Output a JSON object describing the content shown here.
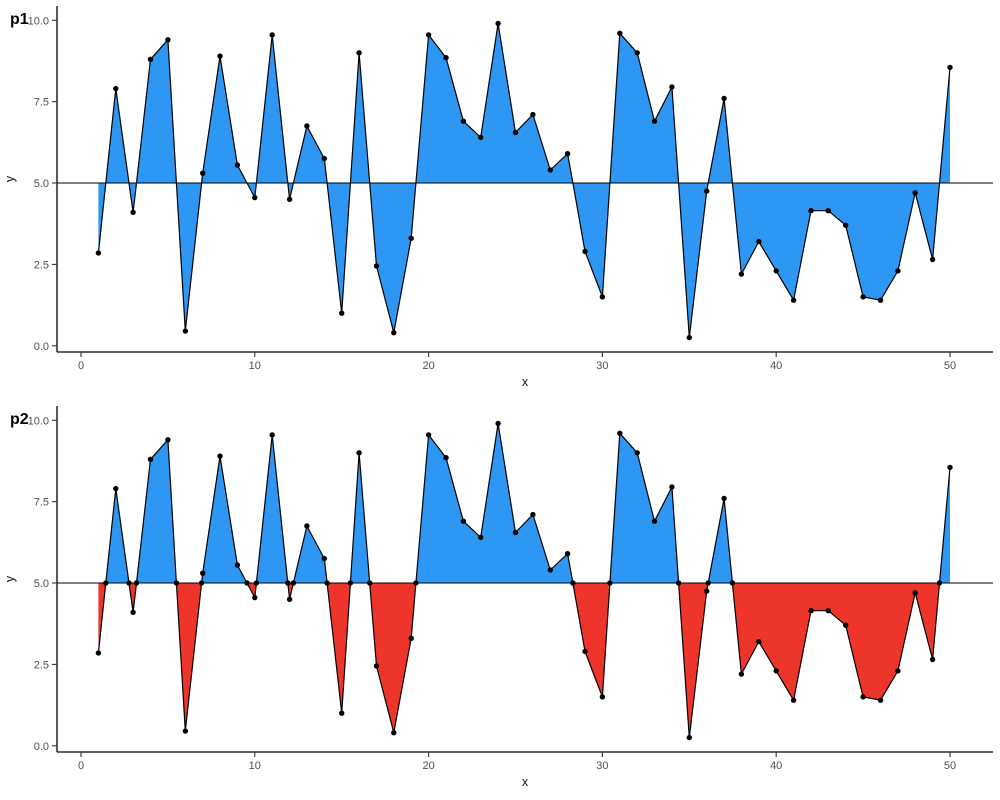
{
  "figure": {
    "background": "#ffffff",
    "panel_titles": [
      "p1",
      "p2"
    ]
  },
  "chart_data": {
    "type": "area",
    "x": [
      1,
      2,
      3,
      4,
      5,
      6,
      7,
      8,
      9,
      10,
      11,
      12,
      13,
      14,
      15,
      16,
      17,
      18,
      19,
      20,
      21,
      22,
      23,
      24,
      25,
      26,
      27,
      28,
      29,
      30,
      31,
      32,
      33,
      34,
      35,
      36,
      37,
      38,
      39,
      40,
      41,
      42,
      43,
      44,
      45,
      46,
      47,
      48,
      49,
      50
    ],
    "y": [
      2.85,
      7.9,
      4.1,
      8.8,
      9.4,
      0.45,
      5.3,
      8.9,
      5.55,
      4.55,
      9.55,
      4.5,
      6.75,
      5.75,
      1.0,
      9.0,
      2.45,
      0.4,
      3.3,
      9.55,
      8.85,
      6.9,
      6.4,
      9.9,
      6.55,
      7.1,
      5.4,
      5.9,
      2.9,
      1.5,
      9.6,
      9.0,
      6.9,
      7.95,
      0.25,
      4.75,
      7.6,
      2.2,
      3.2,
      2.3,
      1.4,
      4.15,
      4.15,
      3.7,
      1.5,
      1.4,
      2.3,
      4.7,
      2.65,
      8.55
    ],
    "baseline": 5,
    "xlabel": "x",
    "ylabel": "y",
    "x_ticks": [
      0,
      10,
      20,
      30,
      40,
      50
    ],
    "x_tick_labels": [
      "0",
      "10",
      "20",
      "30",
      "40",
      "50"
    ],
    "y_ticks": [
      0,
      2.5,
      5,
      7.5,
      10
    ],
    "y_tick_labels": [
      "0.0",
      "2.5",
      "5.0",
      "7.5",
      "10.0"
    ],
    "xlim": [
      -1.4,
      52.5
    ],
    "ylim": [
      -0.2,
      10.45
    ],
    "grid": false,
    "legend_position": "none",
    "panels": [
      {
        "title": "p1",
        "fill_above": "#2E96F3",
        "fill_below": "#2E96F3",
        "markers_at_crossings": false
      },
      {
        "title": "p2",
        "fill_above": "#2E96F3",
        "fill_below": "#EE352C",
        "markers_at_crossings": true
      }
    ],
    "colors": {
      "line": "#000000",
      "point": "#000000",
      "axis": "#000000",
      "baseline_rule": "#000000",
      "tick_label": "#4d4d4d",
      "axis_title": "#111111",
      "panel_title": "#000000"
    }
  }
}
